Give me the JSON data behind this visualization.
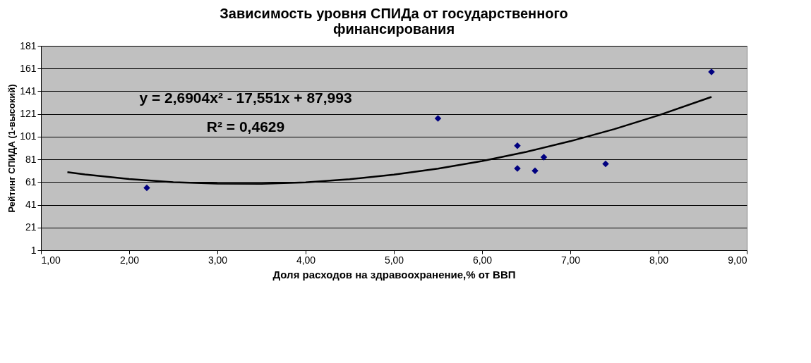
{
  "chart_data": {
    "type": "scatter",
    "title": [
      "Зависимость уровня СПИДа от государственного",
      "финансирования"
    ],
    "xlabel": "Доля расходов на здравоохранение,% от ВВП",
    "ylabel": "Рейтинг СПИДА (1-высокий)",
    "xlim": [
      1,
      9
    ],
    "xticks": [
      {
        "value": 1,
        "label": "1,00"
      },
      {
        "value": 2,
        "label": "2,00"
      },
      {
        "value": 3,
        "label": "3,00"
      },
      {
        "value": 4,
        "label": "4,00"
      },
      {
        "value": 5,
        "label": "5,00"
      },
      {
        "value": 6,
        "label": "6,00"
      },
      {
        "value": 7,
        "label": "7,00"
      },
      {
        "value": 8,
        "label": "8,00"
      },
      {
        "value": 9,
        "label": "9,00"
      }
    ],
    "ylim": [
      1,
      181
    ],
    "yticks": [
      1,
      21,
      41,
      61,
      81,
      101,
      121,
      141,
      161,
      181
    ],
    "grid": "y",
    "marker": "diamond",
    "series": [
      {
        "color": "#000080",
        "x": [
          2.2,
          5.5,
          6.4,
          6.4,
          6.6,
          6.7,
          7.4,
          8.6
        ],
        "values": [
          56,
          117,
          93,
          73,
          71,
          83,
          77,
          158
        ]
      },
      {
        "type": "line",
        "marker": "none",
        "color": "#000000",
        "line_style": "solid",
        "x": [
          1.3,
          1.5,
          2.0,
          2.5,
          3.0,
          3.5,
          4.0,
          4.5,
          5.0,
          5.5,
          6.0,
          6.5,
          7.0,
          7.5,
          8.0,
          8.6
        ],
        "values": [
          69.7,
          67.7,
          63.7,
          60.9,
          59.6,
          59.5,
          60.8,
          63.5,
          67.5,
          72.9,
          79.5,
          87.6,
          97.0,
          107.7,
          119.8,
          136.0
        ]
      }
    ],
    "annotations": [
      "y = 2,6904x² - 17,551x + 87,993",
      "R² = 0,4629"
    ]
  }
}
